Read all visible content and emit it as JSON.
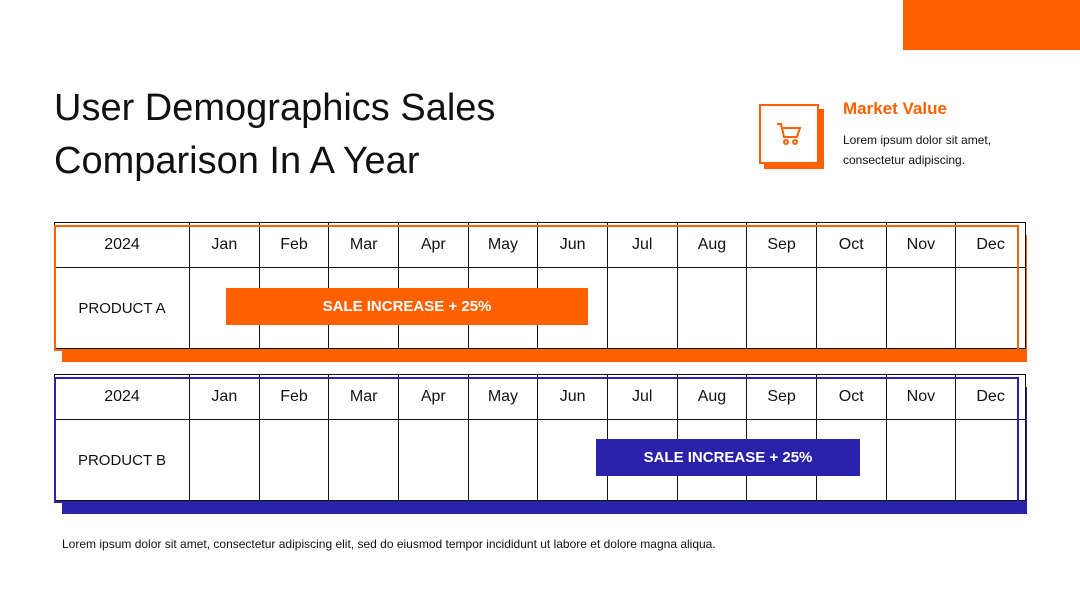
{
  "title": "User Demographics Sales Comparison In A Year",
  "market": {
    "title": "Market Value",
    "text": "Lorem ipsum dolor sit amet, consectetur adipiscing."
  },
  "tables": [
    {
      "year": "2024",
      "months": [
        "Jan",
        "Feb",
        "Mar",
        "Apr",
        "May",
        "Jun",
        "Jul",
        "Aug",
        "Sep",
        "Oct",
        "Nov",
        "Dec"
      ],
      "product": "PRODUCT A",
      "bar": "SALE INCREASE + 25%"
    },
    {
      "year": "2024",
      "months": [
        "Jan",
        "Feb",
        "Mar",
        "Apr",
        "May",
        "Jun",
        "Jul",
        "Aug",
        "Sep",
        "Oct",
        "Nov",
        "Dec"
      ],
      "product": "PRODUCT B",
      "bar": "SALE INCREASE + 25%"
    }
  ],
  "footer": "Lorem ipsum dolor sit amet, consectetur adipiscing elit, sed do eiusmod tempor incididunt ut labore et dolore magna aliqua."
}
